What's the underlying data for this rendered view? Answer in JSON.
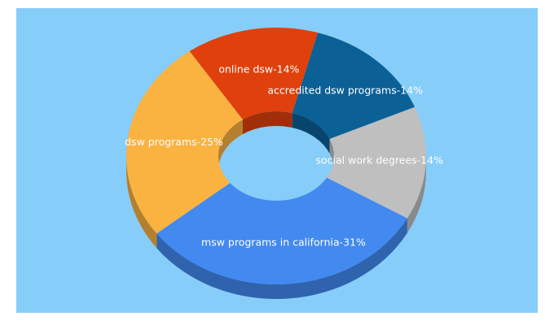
{
  "chart_data": {
    "type": "donut3d",
    "labels": [
      "msw programs in california-31%",
      "dsw programs-25%",
      "online dsw-14%",
      "accredited dsw programs-14%",
      "social work degrees-14%"
    ],
    "values": [
      31,
      25,
      14,
      14,
      14
    ],
    "colors": [
      "#4289f0",
      "#fab241",
      "#e0400c",
      "#0b6096",
      "#bfbfbf"
    ]
  }
}
